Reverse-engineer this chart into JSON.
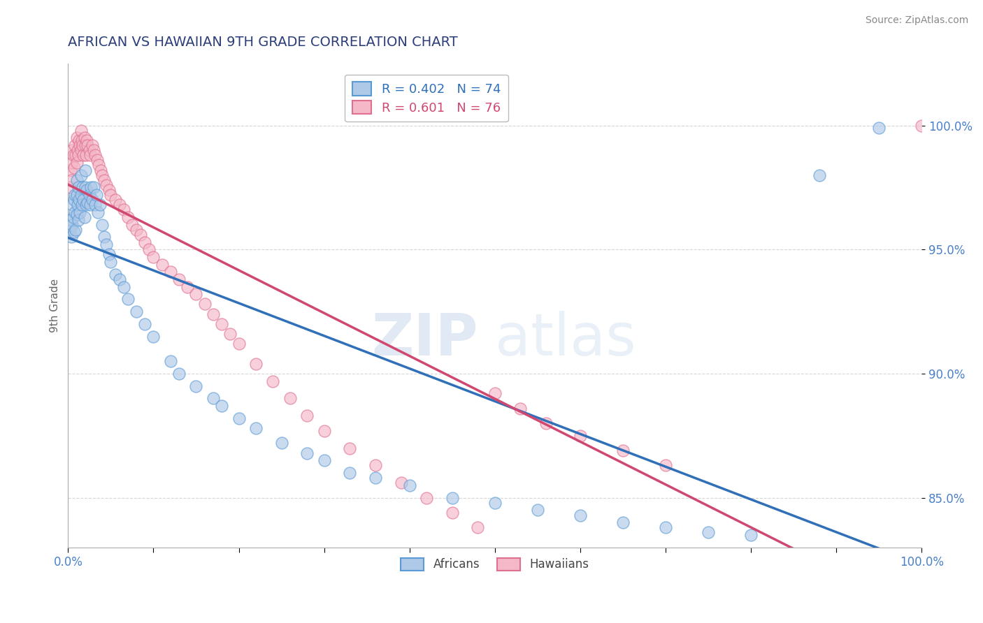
{
  "title": "AFRICAN VS HAWAIIAN 9TH GRADE CORRELATION CHART",
  "source": "Source: ZipAtlas.com",
  "ylabel": "9th Grade",
  "xlim": [
    0.0,
    1.0
  ],
  "ylim": [
    0.83,
    1.025
  ],
  "yticks": [
    0.85,
    0.9,
    0.95,
    1.0
  ],
  "ytick_labels": [
    "85.0%",
    "90.0%",
    "95.0%",
    "100.0%"
  ],
  "xticks": [
    0.0,
    0.1,
    0.2,
    0.3,
    0.4,
    0.5,
    0.6,
    0.7,
    0.8,
    0.9,
    1.0
  ],
  "xtick_labels": [
    "0.0%",
    "",
    "",
    "",
    "",
    "",
    "",
    "",
    "",
    "",
    "100.0%"
  ],
  "african_color": "#aec8e8",
  "hawaiian_color": "#f4b8c8",
  "african_edge_color": "#5b9bd5",
  "hawaiian_edge_color": "#e07090",
  "african_line_color": "#3070b8",
  "hawaiian_line_color": "#d04870",
  "R_african": 0.402,
  "N_african": 74,
  "R_hawaiian": 0.601,
  "N_hawaiian": 76,
  "title_color": "#2c3e7a",
  "source_color": "#888888",
  "axis_label_color": "#666666",
  "tick_label_color": "#4a80c8",
  "watermark_zip": "ZIP",
  "watermark_atlas": "atlas",
  "africans_x": [
    0.002,
    0.003,
    0.004,
    0.005,
    0.005,
    0.006,
    0.007,
    0.007,
    0.008,
    0.008,
    0.009,
    0.01,
    0.01,
    0.01,
    0.011,
    0.012,
    0.012,
    0.013,
    0.014,
    0.015,
    0.015,
    0.016,
    0.017,
    0.018,
    0.019,
    0.02,
    0.02,
    0.021,
    0.022,
    0.023,
    0.025,
    0.026,
    0.027,
    0.028,
    0.03,
    0.032,
    0.033,
    0.035,
    0.037,
    0.04,
    0.042,
    0.045,
    0.048,
    0.05,
    0.055,
    0.06,
    0.065,
    0.07,
    0.08,
    0.09,
    0.1,
    0.12,
    0.13,
    0.15,
    0.17,
    0.18,
    0.2,
    0.22,
    0.25,
    0.28,
    0.3,
    0.33,
    0.36,
    0.4,
    0.45,
    0.5,
    0.55,
    0.6,
    0.65,
    0.7,
    0.75,
    0.8,
    0.88,
    0.95
  ],
  "africans_y": [
    0.958,
    0.962,
    0.955,
    0.96,
    0.968,
    0.963,
    0.957,
    0.97,
    0.965,
    0.972,
    0.958,
    0.964,
    0.972,
    0.978,
    0.968,
    0.962,
    0.975,
    0.97,
    0.965,
    0.972,
    0.98,
    0.968,
    0.975,
    0.97,
    0.963,
    0.975,
    0.982,
    0.968,
    0.974,
    0.969,
    0.972,
    0.968,
    0.975,
    0.97,
    0.975,
    0.968,
    0.972,
    0.965,
    0.968,
    0.96,
    0.955,
    0.952,
    0.948,
    0.945,
    0.94,
    0.938,
    0.935,
    0.93,
    0.925,
    0.92,
    0.915,
    0.905,
    0.9,
    0.895,
    0.89,
    0.887,
    0.882,
    0.878,
    0.872,
    0.868,
    0.865,
    0.86,
    0.858,
    0.855,
    0.85,
    0.848,
    0.845,
    0.843,
    0.84,
    0.838,
    0.836,
    0.835,
    0.98,
    0.999
  ],
  "hawaiians_x": [
    0.002,
    0.003,
    0.004,
    0.005,
    0.005,
    0.006,
    0.007,
    0.008,
    0.009,
    0.01,
    0.01,
    0.011,
    0.012,
    0.013,
    0.014,
    0.015,
    0.015,
    0.016,
    0.017,
    0.018,
    0.019,
    0.02,
    0.021,
    0.022,
    0.023,
    0.025,
    0.026,
    0.028,
    0.03,
    0.032,
    0.034,
    0.036,
    0.038,
    0.04,
    0.042,
    0.045,
    0.048,
    0.05,
    0.055,
    0.06,
    0.065,
    0.07,
    0.075,
    0.08,
    0.085,
    0.09,
    0.095,
    0.1,
    0.11,
    0.12,
    0.13,
    0.14,
    0.15,
    0.16,
    0.17,
    0.18,
    0.19,
    0.2,
    0.22,
    0.24,
    0.26,
    0.28,
    0.3,
    0.33,
    0.36,
    0.39,
    0.42,
    0.45,
    0.48,
    0.5,
    0.53,
    0.56,
    0.6,
    0.65,
    0.7,
    1.0
  ],
  "hawaiians_y": [
    0.975,
    0.982,
    0.978,
    0.985,
    0.99,
    0.988,
    0.983,
    0.992,
    0.988,
    0.985,
    0.995,
    0.99,
    0.988,
    0.994,
    0.992,
    0.99,
    0.998,
    0.994,
    0.992,
    0.988,
    0.995,
    0.992,
    0.988,
    0.994,
    0.992,
    0.99,
    0.988,
    0.992,
    0.99,
    0.988,
    0.986,
    0.984,
    0.982,
    0.98,
    0.978,
    0.976,
    0.974,
    0.972,
    0.97,
    0.968,
    0.966,
    0.963,
    0.96,
    0.958,
    0.956,
    0.953,
    0.95,
    0.947,
    0.944,
    0.941,
    0.938,
    0.935,
    0.932,
    0.928,
    0.924,
    0.92,
    0.916,
    0.912,
    0.904,
    0.897,
    0.89,
    0.883,
    0.877,
    0.87,
    0.863,
    0.856,
    0.85,
    0.844,
    0.838,
    0.892,
    0.886,
    0.88,
    0.875,
    0.869,
    0.863,
    1.0
  ]
}
